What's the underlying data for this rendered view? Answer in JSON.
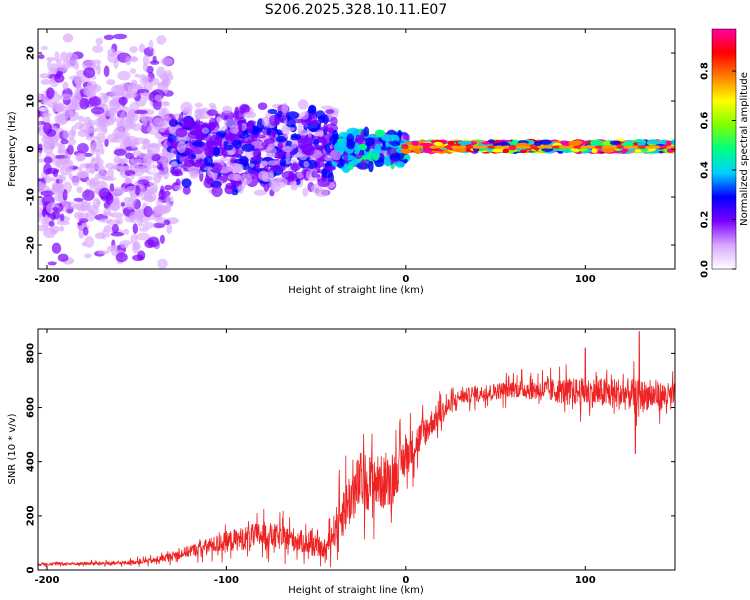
{
  "title": "S206.2025.328.10.11.E07",
  "chart_data": [
    {
      "type": "heatmap",
      "xlabel": "Height of straight line (km)",
      "ylabel": "Frequency (Hz)",
      "xlim": [
        -205,
        150
      ],
      "ylim": [
        -25,
        25
      ],
      "xticks": [
        -200,
        -100,
        0,
        100
      ],
      "yticks": [
        -20,
        -10,
        0,
        10,
        20
      ],
      "colorbar": {
        "label": "Normalized spectral amplitude",
        "range": [
          0,
          0.97
        ],
        "ticks": [
          0.0,
          0.2,
          0.4,
          0.6,
          0.8
        ],
        "tick_labels": [
          "0.0",
          "0.2",
          "0.4",
          "0.6",
          "0.8"
        ],
        "colors": [
          "#ffffff",
          "#d9a6ff",
          "#7a00ff",
          "#0000ff",
          "#00d0ff",
          "#00ff80",
          "#80ff00",
          "#ffff00",
          "#ff8000",
          "#ff0000",
          "#ff00a0"
        ]
      },
      "description_regions": [
        {
          "x_range": [
            -205,
            -130
          ],
          "freq_spread": 25,
          "amplitude": 0.15
        },
        {
          "x_range": [
            -130,
            -40
          ],
          "freq_spread": 10,
          "amplitude": 0.25
        },
        {
          "x_range": [
            -40,
            0
          ],
          "freq_spread": 4,
          "amplitude": 0.4
        },
        {
          "x_range": [
            0,
            150
          ],
          "freq_center": 0.5,
          "freq_spread": 1,
          "amplitude": 0.9
        }
      ]
    },
    {
      "type": "line",
      "xlabel": "Height of straight line (km)",
      "ylabel": "SNR (10 * v/v)",
      "xlim": [
        -205,
        150
      ],
      "ylim": [
        0,
        890
      ],
      "xticks": [
        -200,
        -100,
        0,
        100
      ],
      "yticks": [
        0,
        200,
        400,
        600,
        800
      ],
      "series": [
        {
          "name": "SNR",
          "color": "#ee2222",
          "envelope": [
            {
              "x": -205,
              "mean": 22,
              "noise": 10
            },
            {
              "x": -160,
              "mean": 25,
              "noise": 12
            },
            {
              "x": -140,
              "mean": 35,
              "noise": 20
            },
            {
              "x": -120,
              "mean": 70,
              "noise": 40
            },
            {
              "x": -100,
              "mean": 105,
              "noise": 70
            },
            {
              "x": -80,
              "mean": 130,
              "noise": 90
            },
            {
              "x": -60,
              "mean": 110,
              "noise": 80
            },
            {
              "x": -45,
              "mean": 70,
              "noise": 50
            },
            {
              "x": -35,
              "mean": 220,
              "noise": 180
            },
            {
              "x": -25,
              "mean": 330,
              "noise": 200
            },
            {
              "x": -10,
              "mean": 320,
              "noise": 180
            },
            {
              "x": 0,
              "mean": 420,
              "noise": 140
            },
            {
              "x": 15,
              "mean": 550,
              "noise": 90
            },
            {
              "x": 30,
              "mean": 640,
              "noise": 50
            },
            {
              "x": 60,
              "mean": 670,
              "noise": 60
            },
            {
              "x": 90,
              "mean": 660,
              "noise": 90
            },
            {
              "x": 120,
              "mean": 650,
              "noise": 110
            },
            {
              "x": 150,
              "mean": 640,
              "noise": 90
            }
          ],
          "spikes": [
            {
              "x": 130,
              "y": 880
            },
            {
              "x": 128,
              "y": 430
            },
            {
              "x": 100,
              "y": 820
            }
          ]
        }
      ]
    }
  ]
}
